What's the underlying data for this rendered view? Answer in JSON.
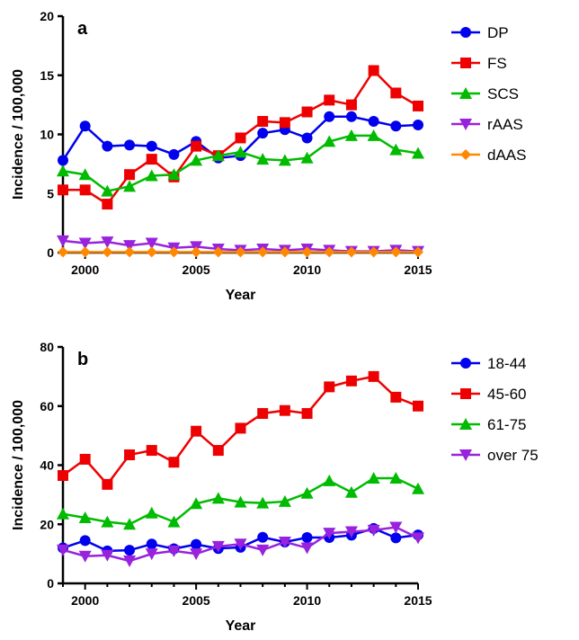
{
  "chart_data": [
    {
      "type": "line",
      "panel_label": "a",
      "xlabel": "Year",
      "ylabel": "Incidence / 100,000",
      "xlim": [
        1999,
        2015
      ],
      "ylim": [
        0,
        20
      ],
      "xticks": [
        2000,
        2005,
        2010,
        2015
      ],
      "yticks": [
        0,
        5,
        10,
        15,
        20
      ],
      "grid": false,
      "legend_position": "right",
      "x": [
        1999,
        2000,
        2001,
        2002,
        2003,
        2004,
        2005,
        2006,
        2007,
        2008,
        2009,
        2010,
        2011,
        2012,
        2013,
        2014,
        2015
      ],
      "series": [
        {
          "name": "DP",
          "color": "#0000ee",
          "marker": "circle",
          "values": [
            7.8,
            10.7,
            9.0,
            9.1,
            9.0,
            8.3,
            9.4,
            8.0,
            8.2,
            10.1,
            10.4,
            9.7,
            11.5,
            11.5,
            11.1,
            10.7,
            10.8
          ]
        },
        {
          "name": "FS",
          "color": "#ee0000",
          "marker": "square",
          "values": [
            5.3,
            5.3,
            4.1,
            6.6,
            7.9,
            6.4,
            9.0,
            8.2,
            9.7,
            11.1,
            11.0,
            11.9,
            12.9,
            12.5,
            15.4,
            13.5,
            12.4
          ]
        },
        {
          "name": "SCS",
          "color": "#00bb00",
          "marker": "triangle-up",
          "values": [
            6.9,
            6.6,
            5.2,
            5.6,
            6.5,
            6.6,
            7.8,
            8.2,
            8.5,
            7.9,
            7.8,
            8.0,
            9.4,
            9.9,
            9.9,
            8.7,
            8.4
          ]
        },
        {
          "name": "rAAS",
          "color": "#9922dd",
          "marker": "triangle-down",
          "values": [
            1.0,
            0.8,
            0.9,
            0.6,
            0.8,
            0.4,
            0.5,
            0.3,
            0.2,
            0.3,
            0.2,
            0.3,
            0.2,
            0.1,
            0.1,
            0.2,
            0.1
          ]
        },
        {
          "name": "dAAS",
          "color": "#ff8800",
          "marker": "diamond",
          "values": [
            0.05,
            0.05,
            0.05,
            0.05,
            0.05,
            0.05,
            0.05,
            0.05,
            0.05,
            0.05,
            0.05,
            0.05,
            0.05,
            0.05,
            0.05,
            0.05,
            0.05
          ]
        }
      ]
    },
    {
      "type": "line",
      "panel_label": "b",
      "xlabel": "Year",
      "ylabel": "Incidence / 100,000",
      "xlim": [
        1999,
        2015
      ],
      "ylim": [
        0,
        80
      ],
      "xticks": [
        2000,
        2005,
        2010,
        2015
      ],
      "yticks": [
        0,
        20,
        40,
        60,
        80
      ],
      "grid": false,
      "legend_position": "right",
      "x": [
        1999,
        2000,
        2001,
        2002,
        2003,
        2004,
        2005,
        2006,
        2007,
        2008,
        2009,
        2010,
        2011,
        2012,
        2013,
        2014,
        2015
      ],
      "series": [
        {
          "name": "18-44",
          "color": "#0000ee",
          "marker": "circle",
          "values": [
            12,
            14.5,
            11,
            11.2,
            13.3,
            11.7,
            13.2,
            11.8,
            12.2,
            15.6,
            14.0,
            15.5,
            15.5,
            16.3,
            18.6,
            15.4,
            16.4
          ]
        },
        {
          "name": "45-60",
          "color": "#ee0000",
          "marker": "square",
          "values": [
            36.5,
            42,
            33.5,
            43.5,
            45,
            41,
            51.5,
            45,
            52.5,
            57.5,
            58.5,
            57.5,
            66.5,
            68.5,
            70,
            63,
            60
          ]
        },
        {
          "name": "61-75",
          "color": "#00bb00",
          "marker": "triangle-up",
          "values": [
            23.5,
            22.2,
            20.8,
            20,
            23.8,
            20.8,
            27,
            28.8,
            27.5,
            27.2,
            27.7,
            30.5,
            34.7,
            30.8,
            35.6,
            35.6,
            32
          ]
        },
        {
          "name": "over 75",
          "color": "#9922dd",
          "marker": "triangle-down",
          "values": [
            11.3,
            9.2,
            9.5,
            7.6,
            10,
            11,
            10,
            12.5,
            13.3,
            11.3,
            14,
            12,
            17,
            17.5,
            18,
            19,
            15.4
          ]
        }
      ]
    }
  ]
}
